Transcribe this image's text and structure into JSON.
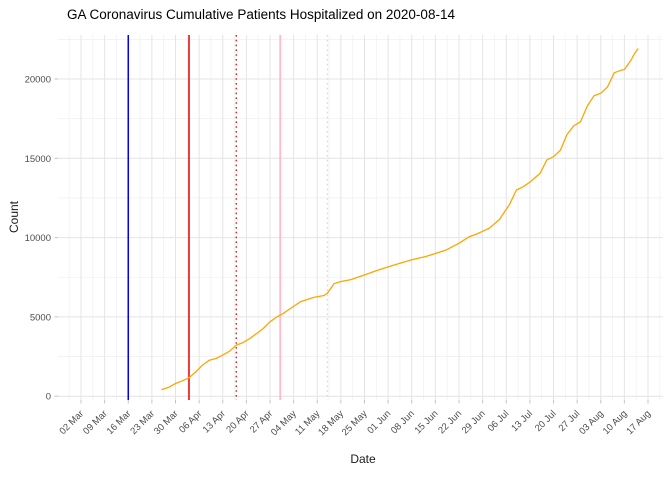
{
  "title": "GA Coronavirus Cumulative Patients Hospitalized on 2020-08-14",
  "colors": {
    "background": "#FFFFFF",
    "title_text": "#000000",
    "axis_title_text": "#1A1A1A",
    "tick_text": "#4D4D4D",
    "tick_mark": "#C4C4C4",
    "grid_major": "#E4E4E4",
    "grid_minor": "#F1F1F1",
    "series_line": "#FFA500"
  },
  "chart_data": {
    "type": "line",
    "title": "GA Coronavirus Cumulative Patients Hospitalized on 2020-08-14",
    "xlabel": "Date",
    "ylabel": "Count",
    "grid": true,
    "legend": "none",
    "ylim": [
      0,
      23000
    ],
    "y_ticks": [
      0,
      5000,
      10000,
      15000,
      20000
    ],
    "y_tick_labels": [
      "0",
      "5000",
      "10000",
      "15000",
      "20000"
    ],
    "y_minor_ticks": [
      2500,
      7500,
      12500,
      17500,
      22500
    ],
    "x_domain": [
      "2020-02-25",
      "2020-08-21"
    ],
    "x_ticks": [
      {
        "date": "2020-03-02",
        "label": "02 Mar"
      },
      {
        "date": "2020-03-09",
        "label": "09 Mar"
      },
      {
        "date": "2020-03-16",
        "label": "16 Mar"
      },
      {
        "date": "2020-03-23",
        "label": "23 Mar"
      },
      {
        "date": "2020-03-30",
        "label": "30 Mar"
      },
      {
        "date": "2020-04-06",
        "label": "06 Apr"
      },
      {
        "date": "2020-04-13",
        "label": "13 Apr"
      },
      {
        "date": "2020-04-20",
        "label": "20 Apr"
      },
      {
        "date": "2020-04-27",
        "label": "27 Apr"
      },
      {
        "date": "2020-05-04",
        "label": "04 May"
      },
      {
        "date": "2020-05-11",
        "label": "11 May"
      },
      {
        "date": "2020-05-18",
        "label": "18 May"
      },
      {
        "date": "2020-05-25",
        "label": "25 May"
      },
      {
        "date": "2020-06-01",
        "label": "01 Jun"
      },
      {
        "date": "2020-06-08",
        "label": "08 Jun"
      },
      {
        "date": "2020-06-15",
        "label": "15 Jun"
      },
      {
        "date": "2020-06-22",
        "label": "22 Jun"
      },
      {
        "date": "2020-06-29",
        "label": "29 Jun"
      },
      {
        "date": "2020-07-06",
        "label": "06 Jul"
      },
      {
        "date": "2020-07-13",
        "label": "13 Jul"
      },
      {
        "date": "2020-07-20",
        "label": "20 Jul"
      },
      {
        "date": "2020-07-27",
        "label": "27 Jul"
      },
      {
        "date": "2020-08-03",
        "label": "03 Aug"
      },
      {
        "date": "2020-08-10",
        "label": "10 Aug"
      },
      {
        "date": "2020-08-17",
        "label": "17 Aug"
      }
    ],
    "vlines": [
      {
        "date": "2020-03-16",
        "color": "#0000EE",
        "style": "solid"
      },
      {
        "date": "2020-04-03",
        "color": "#E60000",
        "style": "solid"
      },
      {
        "date": "2020-04-17",
        "color": "#CC0000",
        "style": "dotted"
      },
      {
        "date": "2020-04-30",
        "color": "#FFB3C1",
        "style": "solid"
      },
      {
        "date": "2020-05-14",
        "color": "#FFC6D0",
        "style": "dotted"
      }
    ],
    "series": [
      {
        "name": "cumulative-patients-hospitalized",
        "color": "#FFA500",
        "points": [
          [
            "2020-03-26",
            420
          ],
          [
            "2020-03-28",
            560
          ],
          [
            "2020-03-30",
            800
          ],
          [
            "2020-04-01",
            970
          ],
          [
            "2020-04-03",
            1160
          ],
          [
            "2020-04-05",
            1530
          ],
          [
            "2020-04-07",
            1960
          ],
          [
            "2020-04-09",
            2270
          ],
          [
            "2020-04-11",
            2380
          ],
          [
            "2020-04-13",
            2590
          ],
          [
            "2020-04-15",
            2840
          ],
          [
            "2020-04-17",
            3220
          ],
          [
            "2020-04-19",
            3380
          ],
          [
            "2020-04-21",
            3640
          ],
          [
            "2020-04-23",
            3950
          ],
          [
            "2020-04-25",
            4270
          ],
          [
            "2020-04-27",
            4690
          ],
          [
            "2020-04-29",
            5000
          ],
          [
            "2020-05-01",
            5230
          ],
          [
            "2020-05-03",
            5530
          ],
          [
            "2020-05-06",
            5950
          ],
          [
            "2020-05-08",
            6100
          ],
          [
            "2020-05-10",
            6230
          ],
          [
            "2020-05-13",
            6350
          ],
          [
            "2020-05-14",
            6500
          ],
          [
            "2020-05-16",
            7100
          ],
          [
            "2020-05-18",
            7230
          ],
          [
            "2020-05-21",
            7350
          ],
          [
            "2020-05-25",
            7650
          ],
          [
            "2020-05-29",
            7950
          ],
          [
            "2020-06-01",
            8150
          ],
          [
            "2020-06-04",
            8350
          ],
          [
            "2020-06-08",
            8600
          ],
          [
            "2020-06-12",
            8800
          ],
          [
            "2020-06-15",
            9000
          ],
          [
            "2020-06-18",
            9200
          ],
          [
            "2020-06-22",
            9650
          ],
          [
            "2020-06-25",
            10050
          ],
          [
            "2020-06-27",
            10200
          ],
          [
            "2020-06-29",
            10400
          ],
          [
            "2020-07-01",
            10600
          ],
          [
            "2020-07-04",
            11150
          ],
          [
            "2020-07-07",
            12100
          ],
          [
            "2020-07-09",
            13000
          ],
          [
            "2020-07-11",
            13200
          ],
          [
            "2020-07-13",
            13500
          ],
          [
            "2020-07-16",
            14050
          ],
          [
            "2020-07-18",
            14900
          ],
          [
            "2020-07-20",
            15100
          ],
          [
            "2020-07-22",
            15500
          ],
          [
            "2020-07-24",
            16500
          ],
          [
            "2020-07-26",
            17050
          ],
          [
            "2020-07-28",
            17300
          ],
          [
            "2020-07-30",
            18300
          ],
          [
            "2020-08-01",
            18950
          ],
          [
            "2020-08-03",
            19100
          ],
          [
            "2020-08-05",
            19500
          ],
          [
            "2020-08-07",
            20400
          ],
          [
            "2020-08-09",
            20550
          ],
          [
            "2020-08-10",
            20600
          ],
          [
            "2020-08-12",
            21200
          ],
          [
            "2020-08-13",
            21600
          ],
          [
            "2020-08-14",
            21900
          ]
        ]
      }
    ]
  }
}
